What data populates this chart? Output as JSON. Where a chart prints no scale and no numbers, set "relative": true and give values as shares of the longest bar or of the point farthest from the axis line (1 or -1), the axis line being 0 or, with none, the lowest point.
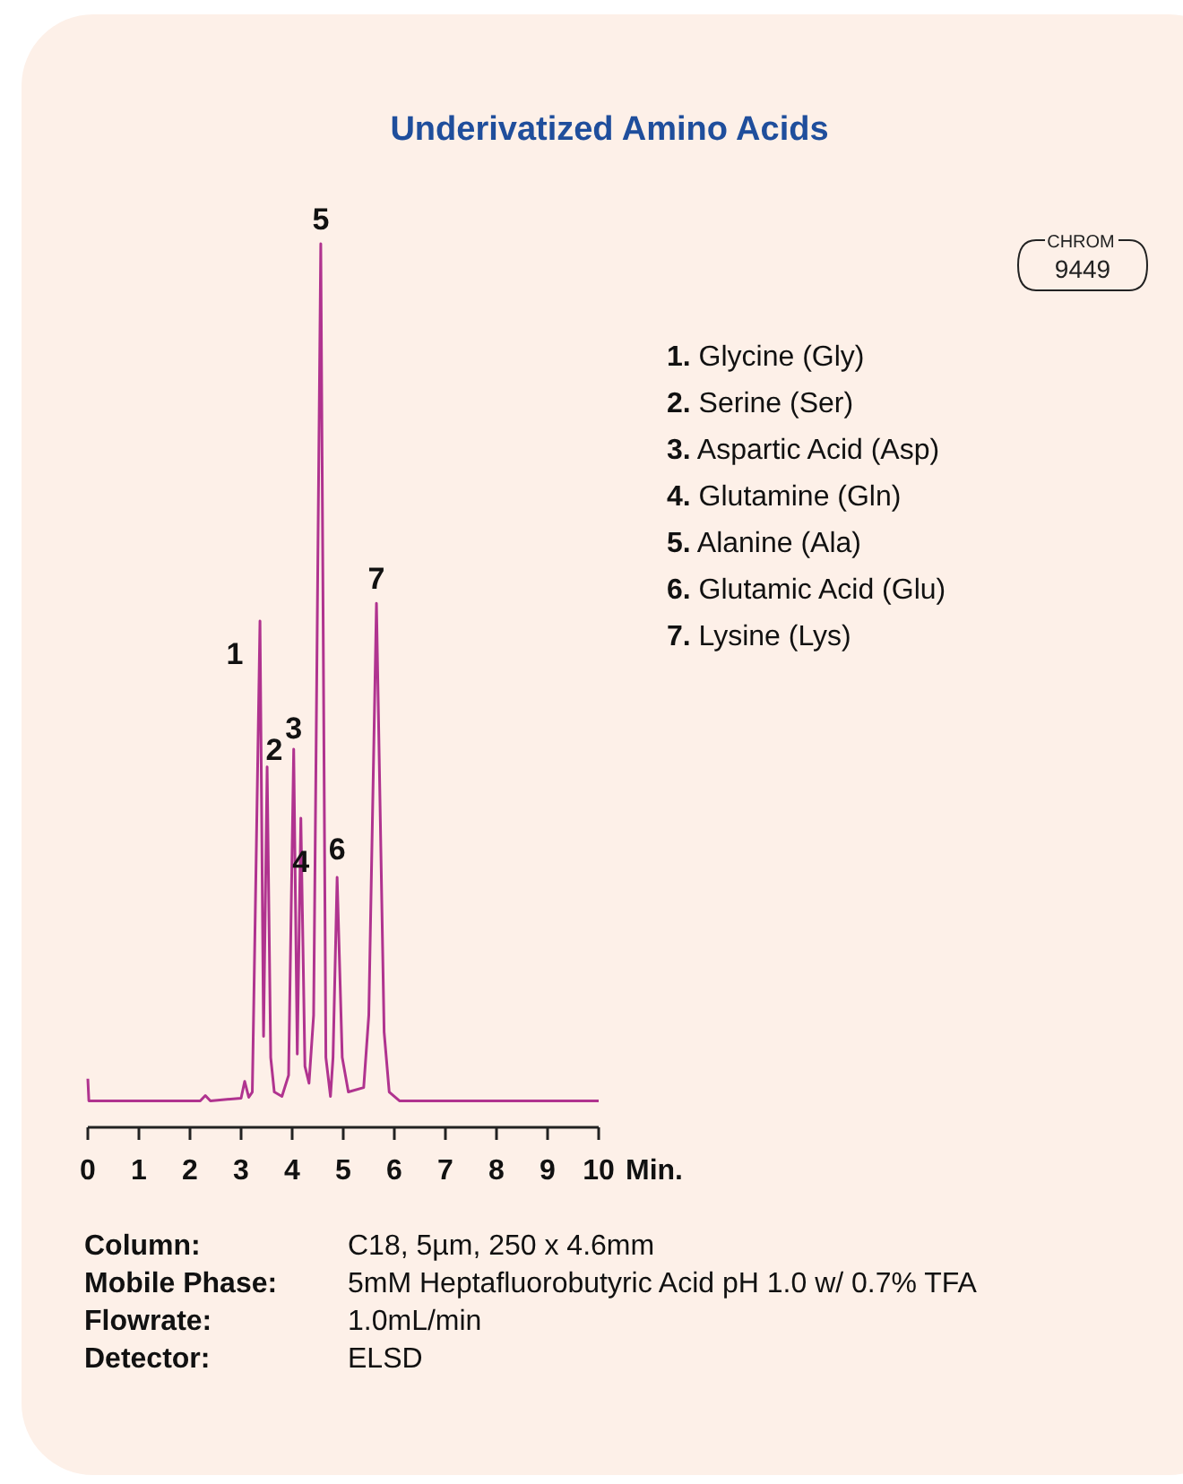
{
  "chart_data": {
    "type": "line",
    "title": "Underivatized Amino Acids",
    "xlabel": "Min.",
    "relative": true,
    "xlim": [
      0,
      10
    ],
    "xticks": [
      0,
      1,
      2,
      3,
      4,
      5,
      6,
      7,
      8,
      9,
      10
    ],
    "grid": false,
    "marker": "none",
    "line_style": "solid",
    "series": [
      {
        "color": "#b0338f",
        "x": [
          0,
          0.02,
          2.2,
          2.3,
          2.4,
          3.0,
          3.07,
          3.15,
          3.22,
          3.3,
          3.37,
          3.44,
          3.51,
          3.58,
          3.65,
          3.8,
          3.93,
          4.03,
          4.1,
          4.17,
          4.25,
          4.33,
          4.42,
          4.56,
          4.66,
          4.75,
          4.8,
          4.88,
          4.98,
          5.1,
          5.4,
          5.5,
          5.65,
          5.8,
          5.9,
          6.1,
          10
        ],
        "values": [
          0.055,
          0.03,
          0.03,
          0.036,
          0.03,
          0.033,
          0.052,
          0.034,
          0.04,
          0.321,
          0.573,
          0.103,
          0.408,
          0.079,
          0.04,
          0.035,
          0.059,
          0.428,
          0.083,
          0.35,
          0.069,
          0.05,
          0.127,
          1,
          0.079,
          0.035,
          0.079,
          0.283,
          0.079,
          0.04,
          0.045,
          0.127,
          0.593,
          0.108,
          0.04,
          0.03,
          0.03
        ]
      }
    ],
    "annotations": [
      {
        "text": "1",
        "x": 3.37,
        "y": 0.573
      },
      {
        "text": "2",
        "x": 3.51,
        "y": 0.408
      },
      {
        "text": "3",
        "x": 4.03,
        "y": 0.428
      },
      {
        "text": "4",
        "x": 4.17,
        "y": 0.35
      },
      {
        "text": "5",
        "x": 4.56,
        "y": 1
      },
      {
        "text": "6",
        "x": 4.88,
        "y": 0.283
      },
      {
        "text": "7",
        "x": 5.65,
        "y": 0.593
      },
      "CHROM 9449",
      "1. Glycine (Gly)",
      "2. Serine (Ser)",
      "3. Aspartic Acid (Asp)",
      "4. Glutamine (Gln)",
      "5. Alanine (Ala)",
      "6. Glutamic Acid (Glu)",
      "7. Lysine (Lys)",
      "Column: C18, 5µm, 250 x 4.6mm",
      "Mobile Phase: 5mM Heptafluorobutyric Acid pH 1.0 w/ 0.7% TFA",
      "Flowrate: 1.0mL/min",
      "Detector: ELSD"
    ]
  }
}
